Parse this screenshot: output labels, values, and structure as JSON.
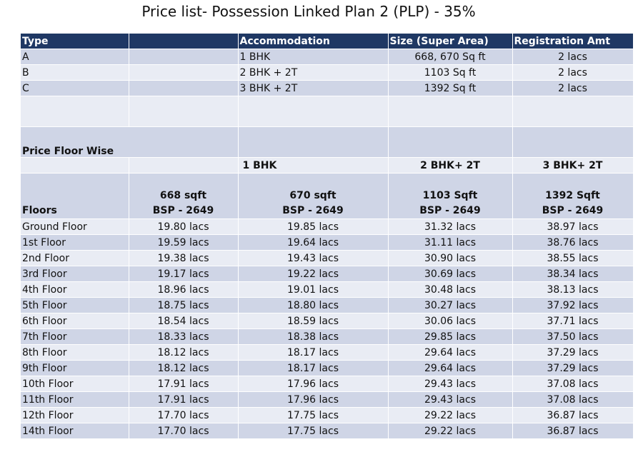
{
  "title": "Price list- Possession Linked Plan 2 (PLP) - 35%",
  "type_table": {
    "headers": [
      "Type",
      "",
      "Accommodation",
      "Size (Super Area)",
      "Registration Amt"
    ],
    "rows": [
      [
        "A",
        "",
        "1 BHK",
        "668, 670 Sq ft",
        "2 lacs"
      ],
      [
        "B",
        "",
        "2 BHK + 2T",
        "1103 Sq ft",
        "2 lacs"
      ],
      [
        "C",
        "",
        "3 BHK + 2T",
        "1392 Sq ft",
        "2 lacs"
      ]
    ]
  },
  "price_section": {
    "label": "Price Floor Wise",
    "unit_types": [
      "1 BHK",
      "2 BHK+ 2T",
      "3 BHK+ 2T"
    ],
    "floors_label": "Floors",
    "columns": [
      {
        "size": "668 sqft",
        "bsp": "BSP - 2649"
      },
      {
        "size": "670 sqft",
        "bsp": "BSP - 2649"
      },
      {
        "size": "1103 Sqft",
        "bsp": "BSP - 2649"
      },
      {
        "size": "1392 Sqft",
        "bsp": "BSP - 2649"
      }
    ],
    "rows": [
      [
        "Ground Floor",
        "19.80 lacs",
        "19.85 lacs",
        "31.32 lacs",
        "38.97 lacs"
      ],
      [
        "1st Floor",
        "19.59 lacs",
        "19.64 lacs",
        "31.11 lacs",
        "38.76 lacs"
      ],
      [
        "2nd Floor",
        "19.38 lacs",
        "19.43 lacs",
        "30.90 lacs",
        "38.55 lacs"
      ],
      [
        "3rd Floor",
        "19.17 lacs",
        "19.22 lacs",
        "30.69 lacs",
        "38.34 lacs"
      ],
      [
        "4th Floor",
        "18.96 lacs",
        "19.01 lacs",
        "30.48 lacs",
        "38.13 lacs"
      ],
      [
        "5th Floor",
        "18.75 lacs",
        "18.80 lacs",
        "30.27 lacs",
        "37.92 lacs"
      ],
      [
        "6th Floor",
        "18.54 lacs",
        "18.59 lacs",
        "30.06 lacs",
        "37.71 lacs"
      ],
      [
        "7th Floor",
        "18.33 lacs",
        "18.38 lacs",
        "29.85 lacs",
        "37.50 lacs"
      ],
      [
        "8th Floor",
        "18.12 lacs",
        "18.17 lacs",
        "29.64 lacs",
        "37.29 lacs"
      ],
      [
        "9th Floor",
        "18.12 lacs",
        "18.17 lacs",
        "29.64 lacs",
        "37.29 lacs"
      ],
      [
        "10th Floor",
        "17.91 lacs",
        "17.96 lacs",
        "29.43 lacs",
        "37.08 lacs"
      ],
      [
        "11th Floor",
        "17.91 lacs",
        "17.96 lacs",
        "29.43 lacs",
        "37.08 lacs"
      ],
      [
        "12th Floor",
        "17.70 lacs",
        "17.75 lacs",
        "29.22 lacs",
        "36.87 lacs"
      ],
      [
        "14th Floor",
        "17.70 lacs",
        "17.75 lacs",
        "29.22 lacs",
        "36.87 lacs"
      ]
    ]
  }
}
